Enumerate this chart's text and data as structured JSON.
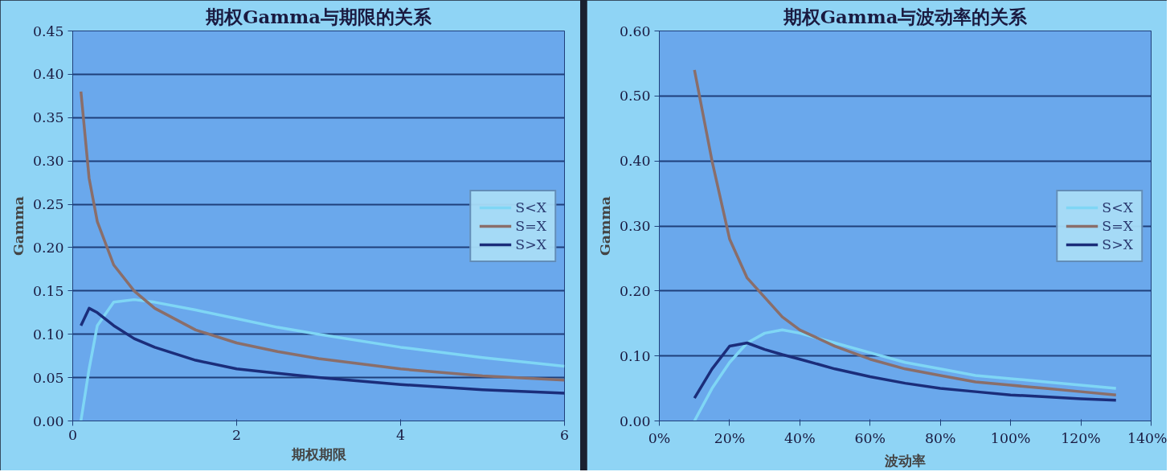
{
  "chart_data": [
    {
      "type": "line",
      "title": "期权Gamma与期限的关系",
      "xlabel": "期权期限",
      "ylabel": "Gamma",
      "xlim": [
        0,
        6
      ],
      "xticks": [
        0,
        2,
        4,
        6
      ],
      "ylim": [
        0,
        0.45
      ],
      "yticks": [
        {
          "value": 0,
          "label": "0.00"
        },
        {
          "value": 0.05,
          "label": "0.05"
        },
        {
          "value": 0.1,
          "label": "0.10"
        },
        {
          "value": 0.15,
          "label": "0.15"
        },
        {
          "value": 0.2,
          "label": "0.20"
        },
        {
          "value": 0.25,
          "label": "0.25"
        },
        {
          "value": 0.3,
          "label": "0.30"
        },
        {
          "value": 0.35,
          "label": "0.35"
        },
        {
          "value": 0.4,
          "label": "0.40"
        },
        {
          "value": 0.45,
          "label": "0.45"
        }
      ],
      "grid": "y",
      "legend": "right",
      "marker": "none",
      "line_style": "solid",
      "x": [
        0.1,
        0.2,
        0.3,
        0.5,
        0.75,
        1,
        1.5,
        2,
        2.5,
        3,
        4,
        5,
        6
      ],
      "series": [
        {
          "name": "S<X",
          "color": "#7fd6f5",
          "values": [
            0.0,
            0.06,
            0.11,
            0.137,
            0.14,
            0.137,
            0.128,
            0.118,
            0.108,
            0.1,
            0.085,
            0.073,
            0.063
          ]
        },
        {
          "name": "S=X",
          "color": "#8a6e6a",
          "values": [
            0.38,
            0.28,
            0.23,
            0.18,
            0.15,
            0.13,
            0.105,
            0.09,
            0.08,
            0.072,
            0.06,
            0.052,
            0.047
          ]
        },
        {
          "name": "S>X",
          "color": "#1b2d7a",
          "values": [
            0.11,
            0.13,
            0.125,
            0.11,
            0.095,
            0.085,
            0.07,
            0.06,
            0.055,
            0.05,
            0.042,
            0.036,
            0.032
          ]
        }
      ]
    },
    {
      "type": "line",
      "title": "期权Gamma与波动率的关系",
      "xlabel": "波动率",
      "ylabel": "Gamma",
      "xlim": [
        0,
        1.4
      ],
      "xticks": [
        {
          "value": 0,
          "label": "0%"
        },
        {
          "value": 0.2,
          "label": "20%"
        },
        {
          "value": 0.4,
          "label": "40%"
        },
        {
          "value": 0.6,
          "label": "60%"
        },
        {
          "value": 0.8,
          "label": "80%"
        },
        {
          "value": 1.0,
          "label": "100%"
        },
        {
          "value": 1.2,
          "label": "120%"
        },
        {
          "value": 1.4,
          "label": "140%"
        }
      ],
      "ylim": [
        0,
        0.6
      ],
      "yticks": [
        {
          "value": 0,
          "label": "0.00"
        },
        {
          "value": 0.1,
          "label": "0.10"
        },
        {
          "value": 0.2,
          "label": "0.20"
        },
        {
          "value": 0.3,
          "label": "0.30"
        },
        {
          "value": 0.4,
          "label": "0.40"
        },
        {
          "value": 0.5,
          "label": "0.50"
        },
        {
          "value": 0.6,
          "label": "0.60"
        }
      ],
      "grid": "y",
      "legend": "right",
      "marker": "none",
      "line_style": "solid",
      "x": [
        0.1,
        0.15,
        0.2,
        0.25,
        0.3,
        0.35,
        0.4,
        0.5,
        0.6,
        0.7,
        0.8,
        0.9,
        1.0,
        1.1,
        1.2,
        1.3
      ],
      "series": [
        {
          "name": "S<X",
          "color": "#7fd6f5",
          "values": [
            0.0,
            0.05,
            0.09,
            0.12,
            0.135,
            0.14,
            0.135,
            0.12,
            0.105,
            0.09,
            0.08,
            0.07,
            0.065,
            0.06,
            0.055,
            0.05
          ]
        },
        {
          "name": "S=X",
          "color": "#8a6e6a",
          "values": [
            0.54,
            0.4,
            0.28,
            0.22,
            0.19,
            0.16,
            0.14,
            0.115,
            0.095,
            0.08,
            0.07,
            0.06,
            0.055,
            0.05,
            0.045,
            0.04
          ]
        },
        {
          "name": "S>X",
          "color": "#1b2d7a",
          "values": [
            0.035,
            0.08,
            0.115,
            0.12,
            0.11,
            0.102,
            0.095,
            0.08,
            0.068,
            0.058,
            0.05,
            0.045,
            0.04,
            0.037,
            0.034,
            0.032
          ]
        }
      ]
    }
  ]
}
